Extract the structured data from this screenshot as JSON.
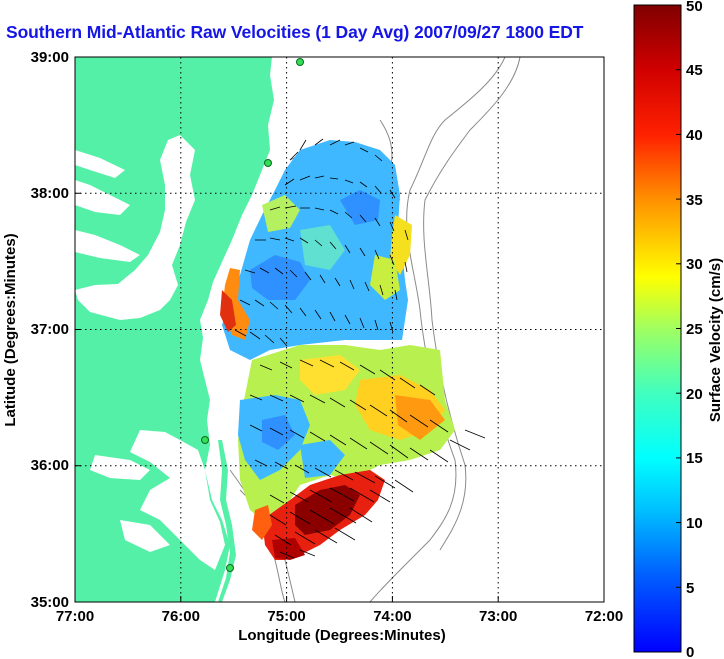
{
  "title": "Southern Mid-Atlantic Raw Velocities (1 Day Avg) 2007/09/27 1800 EDT",
  "axes": {
    "xlabel": "Longitude (Degrees:Minutes)",
    "ylabel": "Latitude (Degrees:Minutes)",
    "xticks": [
      "77:00",
      "76:00",
      "75:00",
      "74:00",
      "73:00",
      "72:00"
    ],
    "yticks": [
      "39:00",
      "38:00",
      "37:00",
      "36:00",
      "35:00"
    ]
  },
  "colorbar": {
    "label": "Surface Velocity (cm/s)",
    "ticks": [
      "50",
      "45",
      "40",
      "35",
      "30",
      "25",
      "20",
      "15",
      "10",
      "5",
      "0"
    ],
    "range": [
      0,
      50
    ],
    "colormap": "jet"
  },
  "colors": {
    "land": "#55f0a8",
    "title": "#1515e6",
    "grid": "#000000",
    "bathymetry": "#8a8a8a",
    "vectors": "#000000"
  },
  "map": {
    "lon_range": [
      -77,
      -72
    ],
    "lat_range": [
      35,
      39
    ],
    "grid": true,
    "bathymetry_contours": true,
    "station_markers": 4
  }
}
